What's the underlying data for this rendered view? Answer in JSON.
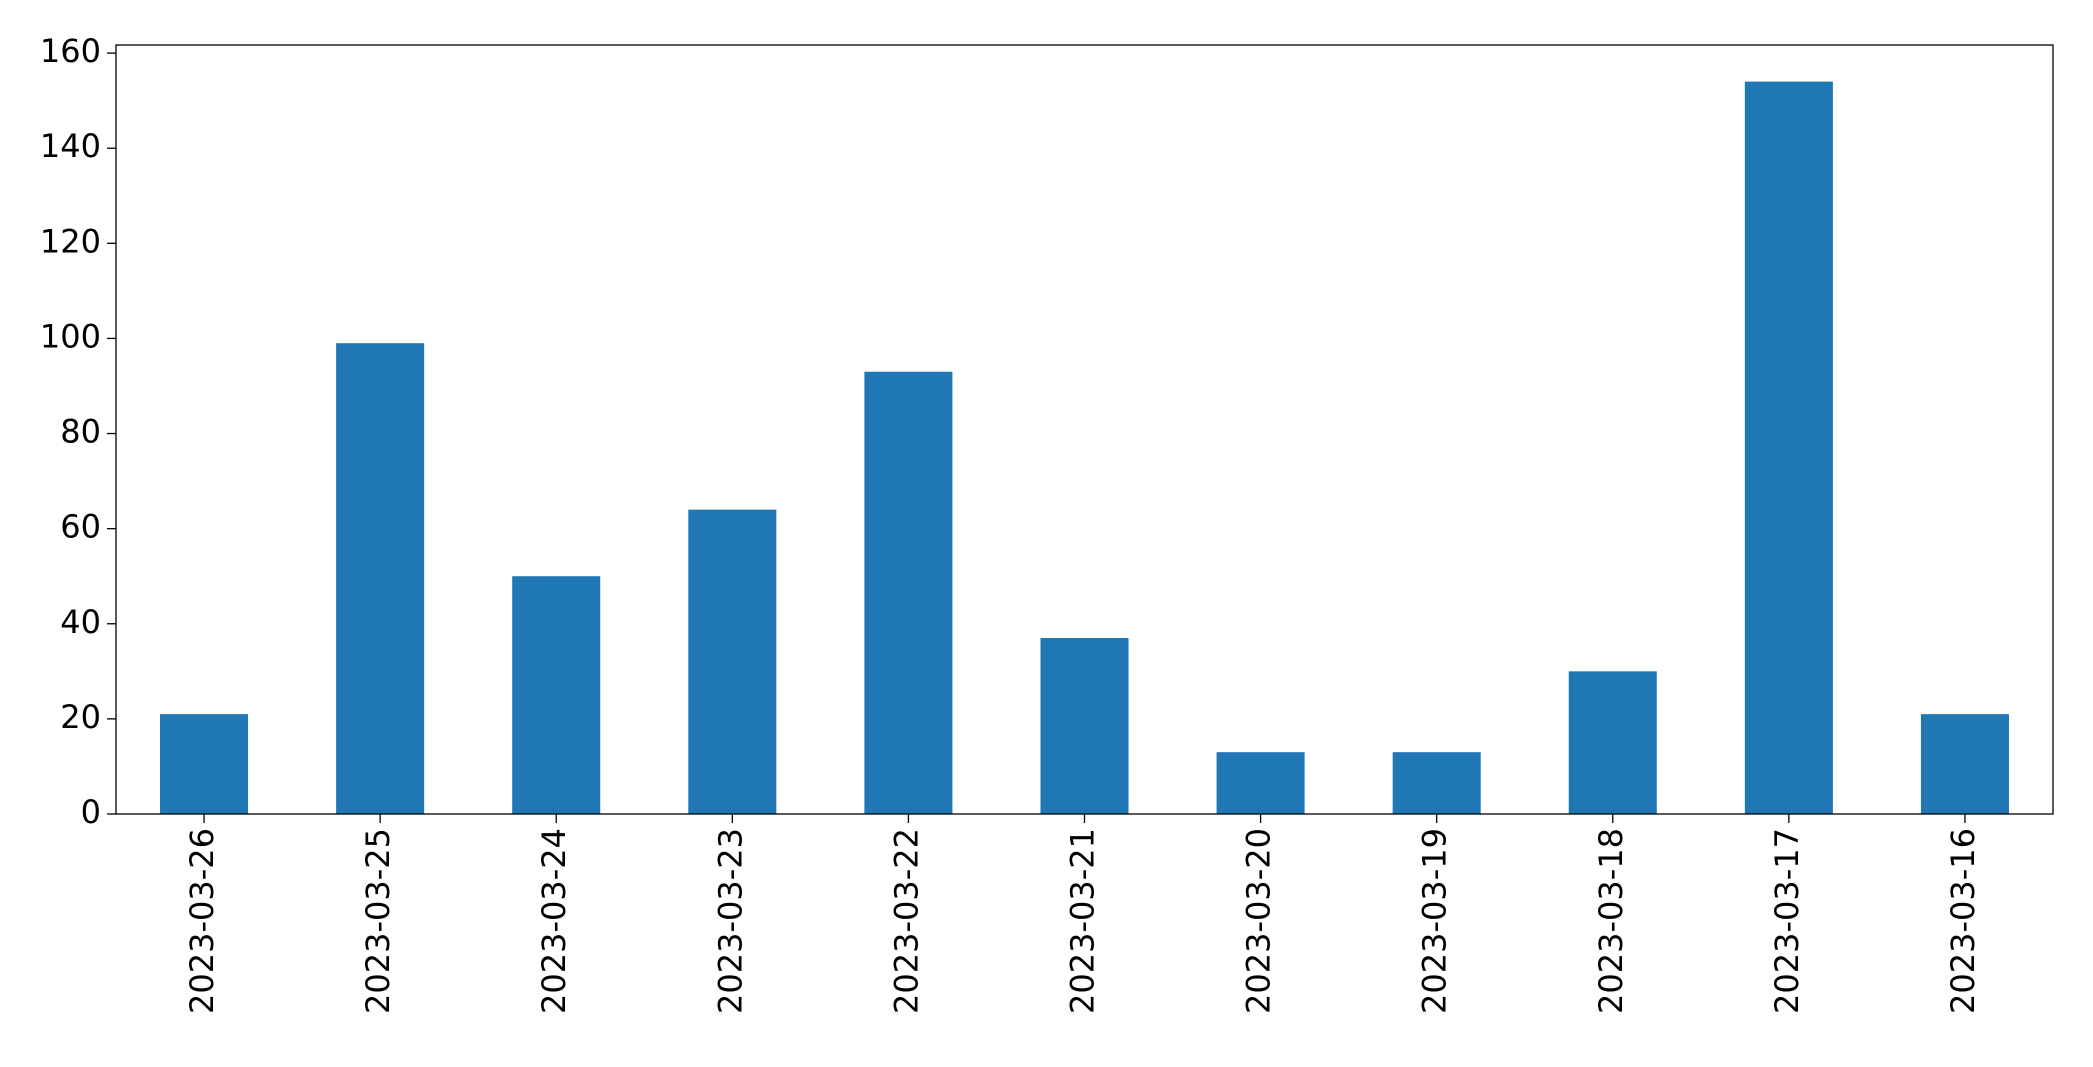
{
  "chart_data": {
    "type": "bar",
    "categories": [
      "2023-03-26",
      "2023-03-25",
      "2023-03-24",
      "2023-03-23",
      "2023-03-22",
      "2023-03-21",
      "2023-03-20",
      "2023-03-19",
      "2023-03-18",
      "2023-03-17",
      "2023-03-16"
    ],
    "values": [
      21,
      99,
      50,
      64,
      93,
      37,
      13,
      13,
      30,
      154,
      21
    ],
    "color": "#1f77b4",
    "ylim": [
      0,
      161.7
    ],
    "yticks": [
      0,
      20,
      40,
      60,
      80,
      100,
      120,
      140,
      160
    ],
    "grid": false
  }
}
